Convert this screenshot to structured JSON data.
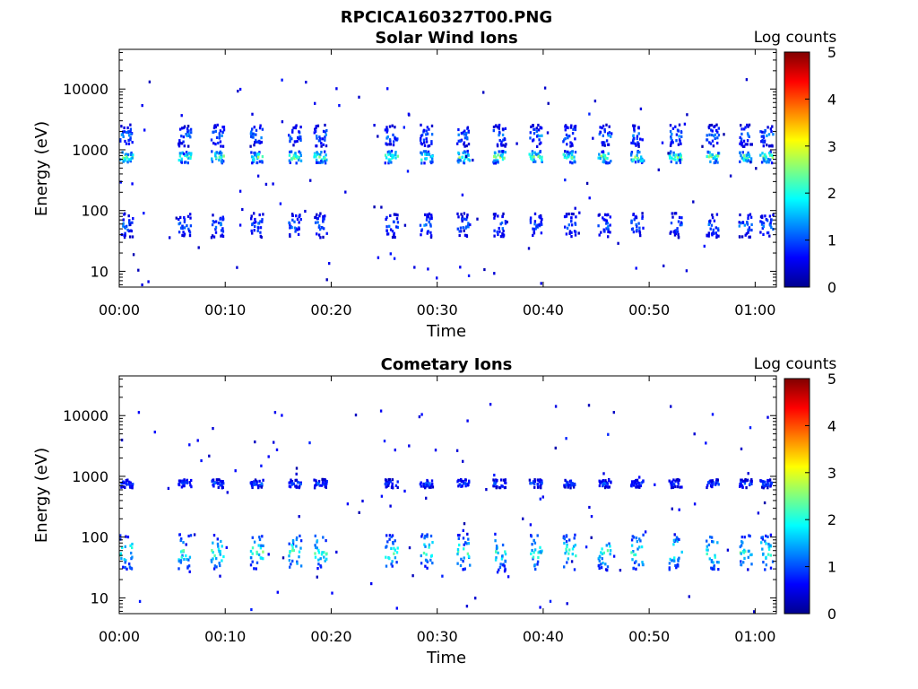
{
  "figure": {
    "title": "RPCICA160327T00.PNG"
  },
  "chart_data": [
    {
      "type": "heatmap",
      "title": "Solar Wind Ions",
      "xlabel": "Time",
      "ylabel": "Energy (eV)",
      "x_ticks": [
        "00:00",
        "00:10",
        "00:20",
        "00:30",
        "00:40",
        "00:50",
        "01:00"
      ],
      "y_ticks": [
        "10",
        "100",
        "1000",
        "10000"
      ],
      "y_scale": "log",
      "x_range_minutes": [
        0,
        62
      ],
      "y_range_eV": [
        5.5,
        45000
      ],
      "colorbar": {
        "label": "Log counts",
        "ticks": [
          "0",
          "1",
          "2",
          "3",
          "4",
          "5"
        ],
        "range": [
          0,
          5
        ]
      },
      "bursts_minutes": [
        0.6,
        6.1,
        9.2,
        12.9,
        16.5,
        18.9,
        25.6,
        28.9,
        32.4,
        35.8,
        39.2,
        42.4,
        45.7,
        48.8,
        52.4,
        55.9,
        59.0,
        61.0
      ],
      "bands": [
        {
          "center_eV": 800,
          "spread_decades": 0.1,
          "peak_log_counts": 3.0
        },
        {
          "center_eV": 1800,
          "spread_decades": 0.18,
          "peak_log_counts": 1.5
        },
        {
          "center_eV": 60,
          "spread_decades": 0.2,
          "peak_log_counts": 1.4
        }
      ]
    },
    {
      "type": "heatmap",
      "title": "Cometary Ions",
      "xlabel": "Time",
      "ylabel": "Energy (eV)",
      "x_ticks": [
        "00:00",
        "00:10",
        "00:20",
        "00:30",
        "00:40",
        "00:50",
        "01:00"
      ],
      "y_ticks": [
        "10",
        "100",
        "1000",
        "10000"
      ],
      "y_scale": "log",
      "x_range_minutes": [
        0,
        62
      ],
      "y_range_eV": [
        5.5,
        45000
      ],
      "colorbar": {
        "label": "Log counts",
        "ticks": [
          "0",
          "1",
          "2",
          "3",
          "4",
          "5"
        ],
        "range": [
          0,
          5
        ]
      },
      "bursts_minutes": [
        0.6,
        6.1,
        9.2,
        12.9,
        16.5,
        18.9,
        25.6,
        28.9,
        32.4,
        35.8,
        39.2,
        42.4,
        45.7,
        48.8,
        52.4,
        55.9,
        59.0,
        61.0
      ],
      "bands": [
        {
          "center_eV": 800,
          "spread_decades": 0.07,
          "peak_log_counts": 1.3
        },
        {
          "center_eV": 60,
          "spread_decades": 0.3,
          "peak_log_counts": 2.6
        }
      ]
    }
  ]
}
